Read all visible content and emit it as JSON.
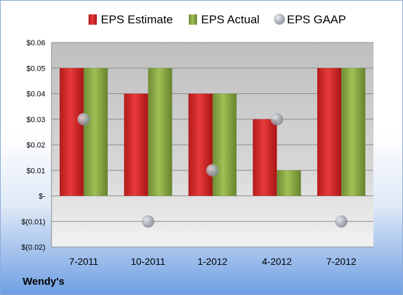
{
  "chart_data": {
    "type": "bar",
    "categories": [
      "7-2011",
      "10-2011",
      "1-2012",
      "4-2012",
      "7-2012"
    ],
    "series": [
      {
        "name": "EPS Estimate",
        "type": "bar",
        "color": "#d92727",
        "values": [
          0.05,
          0.04,
          0.04,
          0.03,
          0.05
        ]
      },
      {
        "name": "EPS Actual",
        "type": "bar",
        "color": "#8fae4a",
        "values": [
          0.05,
          0.05,
          0.04,
          0.01,
          0.05
        ]
      },
      {
        "name": "EPS GAAP",
        "type": "scatter",
        "color": "#9aa0aa",
        "values": [
          0.03,
          -0.01,
          0.01,
          0.03,
          -0.01
        ]
      }
    ],
    "ylim": [
      -0.02,
      0.06
    ],
    "yticks": [
      0.06,
      0.05,
      0.04,
      0.03,
      0.02,
      0.01,
      0,
      -0.01,
      -0.02
    ],
    "ytick_labels": [
      "$0.06",
      "$0.05",
      "$0.04",
      "$0.03",
      "$0.02",
      "$0.01",
      "$-",
      "$(0.01)",
      "$(0.02)"
    ],
    "grid": true,
    "legend": "top"
  },
  "company": "Wendy's"
}
